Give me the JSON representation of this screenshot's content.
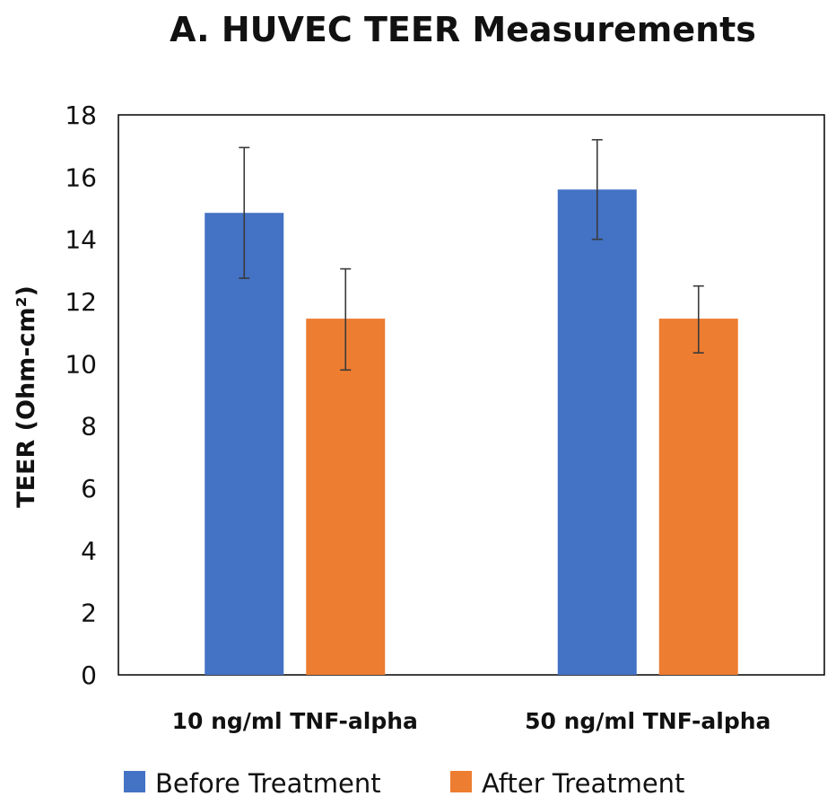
{
  "chart_data": {
    "type": "bar",
    "title": "A. HUVEC TEER Measurements",
    "ylabel": "TEER (Ohm-cm²)",
    "xlabel": "",
    "ylim": [
      0,
      18
    ],
    "yticks": [
      "0",
      "2",
      "4",
      "6",
      "8",
      "10",
      "12",
      "14",
      "16",
      "18"
    ],
    "categories": [
      "10 ng/ml TNF-alpha",
      "50 ng/ml TNF-alpha"
    ],
    "series": [
      {
        "name": "Before Treatment",
        "color": "#4472C4",
        "values": [
          14.85,
          15.6
        ],
        "error_low": [
          12.75,
          14.0
        ],
        "error_high": [
          16.95,
          17.2
        ]
      },
      {
        "name": "After Treatment",
        "color": "#ED7D31",
        "values": [
          11.45,
          11.45
        ],
        "error_low": [
          9.8,
          10.35
        ],
        "error_high": [
          13.05,
          12.5
        ]
      }
    ],
    "grid": false,
    "legend_position": "bottom"
  }
}
